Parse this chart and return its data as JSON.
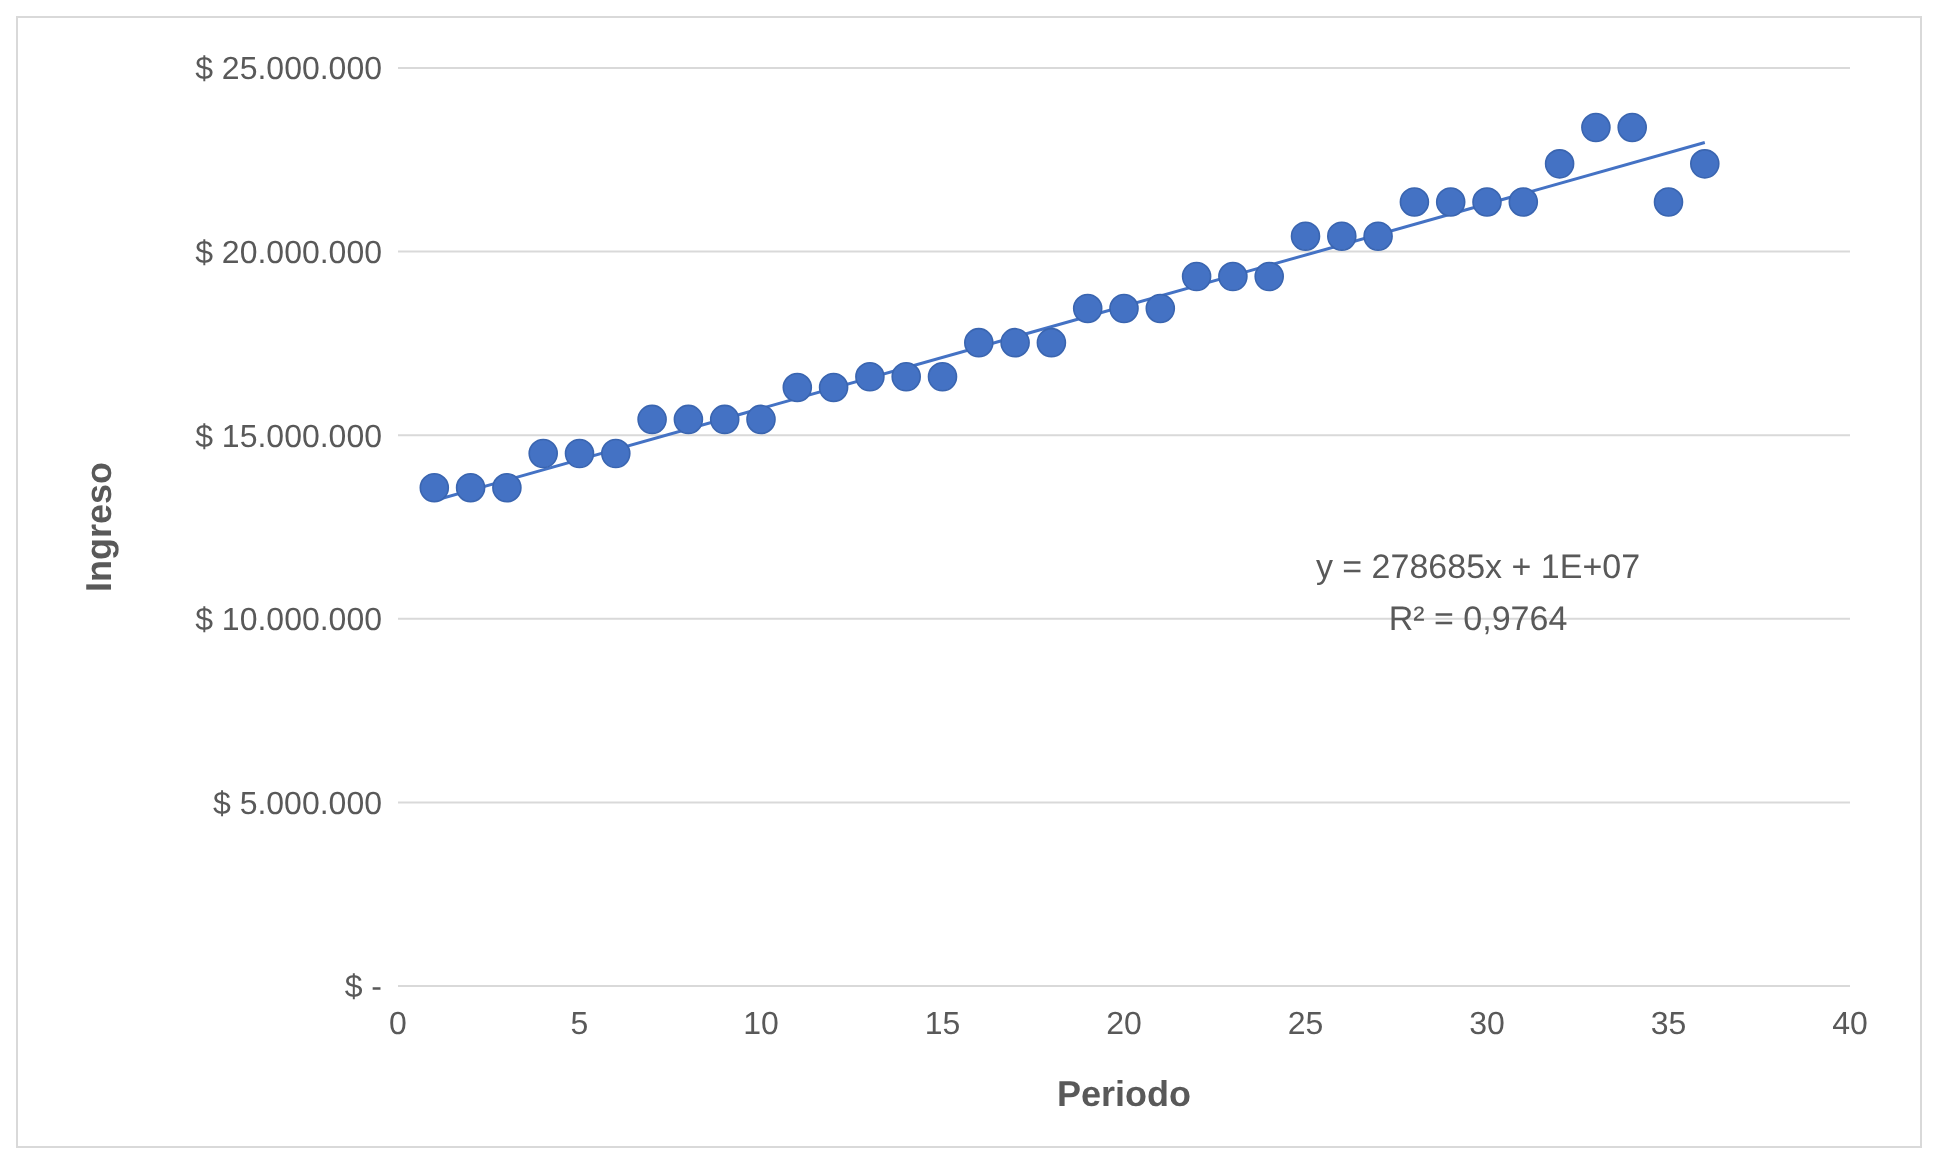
{
  "chart_data": {
    "type": "scatter",
    "xlabel": "Periodo",
    "ylabel": "Ingreso",
    "xlim": [
      0,
      40
    ],
    "xticks": [
      0,
      5,
      10,
      15,
      20,
      25,
      30,
      35,
      40
    ],
    "ylim": [
      0,
      25000000
    ],
    "yticks": [
      {
        "value": 0,
        "label": "$ -"
      },
      {
        "value": 5000000,
        "label": "$ 5.000.000"
      },
      {
        "value": 10000000,
        "label": "$ 10.000.000"
      },
      {
        "value": 15000000,
        "label": "$ 15.000.000"
      },
      {
        "value": 20000000,
        "label": "$ 20.000.000"
      },
      {
        "value": 25000000,
        "label": "$ 25.000.000"
      }
    ],
    "grid": "y",
    "marker": "circle",
    "legend": false,
    "series": [
      {
        "type": "scatter",
        "color": "#4472c4",
        "x": [
          1,
          2,
          3,
          4,
          5,
          6,
          7,
          8,
          9,
          10,
          11,
          12,
          13,
          14,
          15,
          16,
          17,
          18,
          19,
          20,
          21,
          22,
          23,
          24,
          25,
          26,
          27,
          28,
          29,
          30,
          31,
          32,
          33,
          34,
          35,
          36
        ],
        "values": [
          13570000,
          13570000,
          13570000,
          14500000,
          14500000,
          14500000,
          15430000,
          15430000,
          15430000,
          15430000,
          16300000,
          16300000,
          16590000,
          16590000,
          16590000,
          17520000,
          17520000,
          17520000,
          18450000,
          18450000,
          18450000,
          19320000,
          19320000,
          19320000,
          20420000,
          20420000,
          20420000,
          21350000,
          21350000,
          21350000,
          21350000,
          22390000,
          23380000,
          23380000,
          21350000,
          22390000
        ]
      },
      {
        "type": "line",
        "color": "#4472c4",
        "marker": "none",
        "x": [
          1,
          36
        ],
        "values": [
          13220000,
          22970000
        ]
      }
    ],
    "annotations": [
      "y = 278685x + 1E+07",
      "R² = 0,9764"
    ]
  }
}
